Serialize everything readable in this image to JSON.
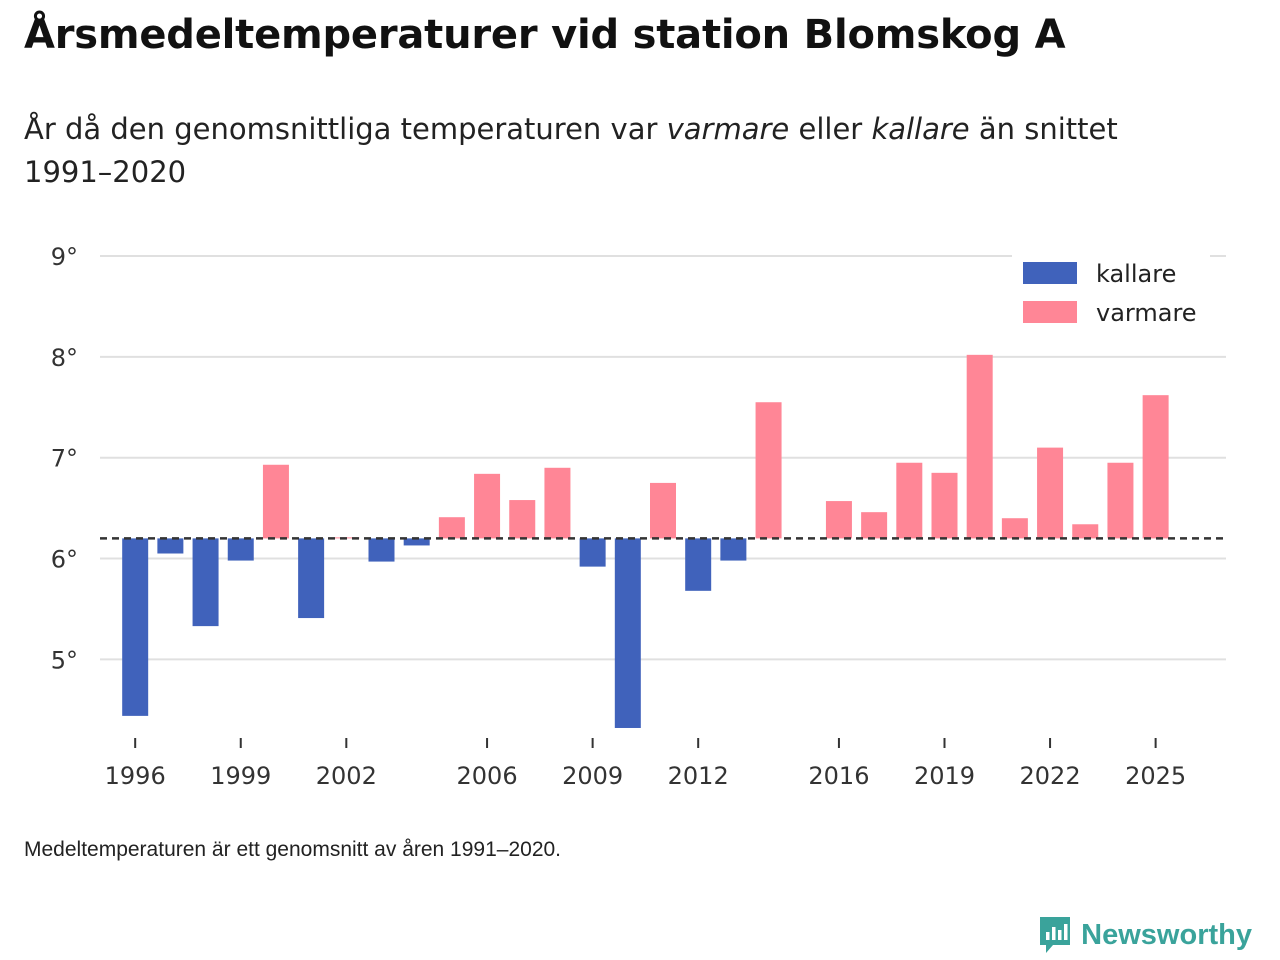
{
  "title": "Årsmedeltemperaturer vid station Blomskog A",
  "subtitle": {
    "part1": "År då den genomsnittliga temperaturen var ",
    "warmer": "varmare",
    "part2": " eller ",
    "colder": "kallare",
    "part3": " än snittet 1991–2020"
  },
  "footnote": "Medeltemperaturen är ett genomsnitt av åren 1991–2020.",
  "brand": {
    "name": "Newsworthy",
    "icon": "newsworthy-logo-icon",
    "color": "#3aa39b"
  },
  "chart_data": {
    "type": "bar",
    "baseline": 6.2,
    "ylim": [
      4.3,
      9.0
    ],
    "y_ticks": [
      5,
      6,
      7,
      8,
      9
    ],
    "y_tick_labels": [
      "5°",
      "6°",
      "7°",
      "8°",
      "9°"
    ],
    "x_ticks": [
      1996,
      1999,
      2002,
      2006,
      2009,
      2012,
      2016,
      2019,
      2022,
      2025
    ],
    "x_tick_labels": [
      "1996",
      "1999",
      "2002",
      "2006",
      "2009",
      "2012",
      "2016",
      "2019",
      "2022",
      "2025"
    ],
    "xlim": [
      1995,
      2027
    ],
    "years": [
      1996,
      1997,
      1998,
      1999,
      2000,
      2001,
      2002,
      2003,
      2004,
      2005,
      2006,
      2007,
      2008,
      2009,
      2010,
      2011,
      2012,
      2013,
      2014,
      2015,
      2016,
      2017,
      2018,
      2019,
      2020,
      2021,
      2022,
      2023,
      2024,
      2025
    ],
    "values": [
      4.44,
      6.05,
      5.33,
      5.98,
      6.93,
      5.41,
      6.21,
      5.97,
      6.13,
      6.41,
      6.84,
      6.58,
      6.9,
      5.92,
      4.32,
      6.75,
      5.68,
      5.98,
      7.55,
      null,
      6.57,
      6.46,
      6.95,
      6.85,
      8.02,
      6.4,
      7.1,
      6.34,
      6.95,
      7.62
    ],
    "legend": [
      {
        "label": "kallare",
        "color": "#4062bb"
      },
      {
        "label": "varmare",
        "color": "#ff8696"
      }
    ],
    "legend_position": "top-right",
    "colors": {
      "colder": "#4062bb",
      "warmer": "#ff8696",
      "grid": "#e0e0e0",
      "baseline": "#333333"
    }
  }
}
